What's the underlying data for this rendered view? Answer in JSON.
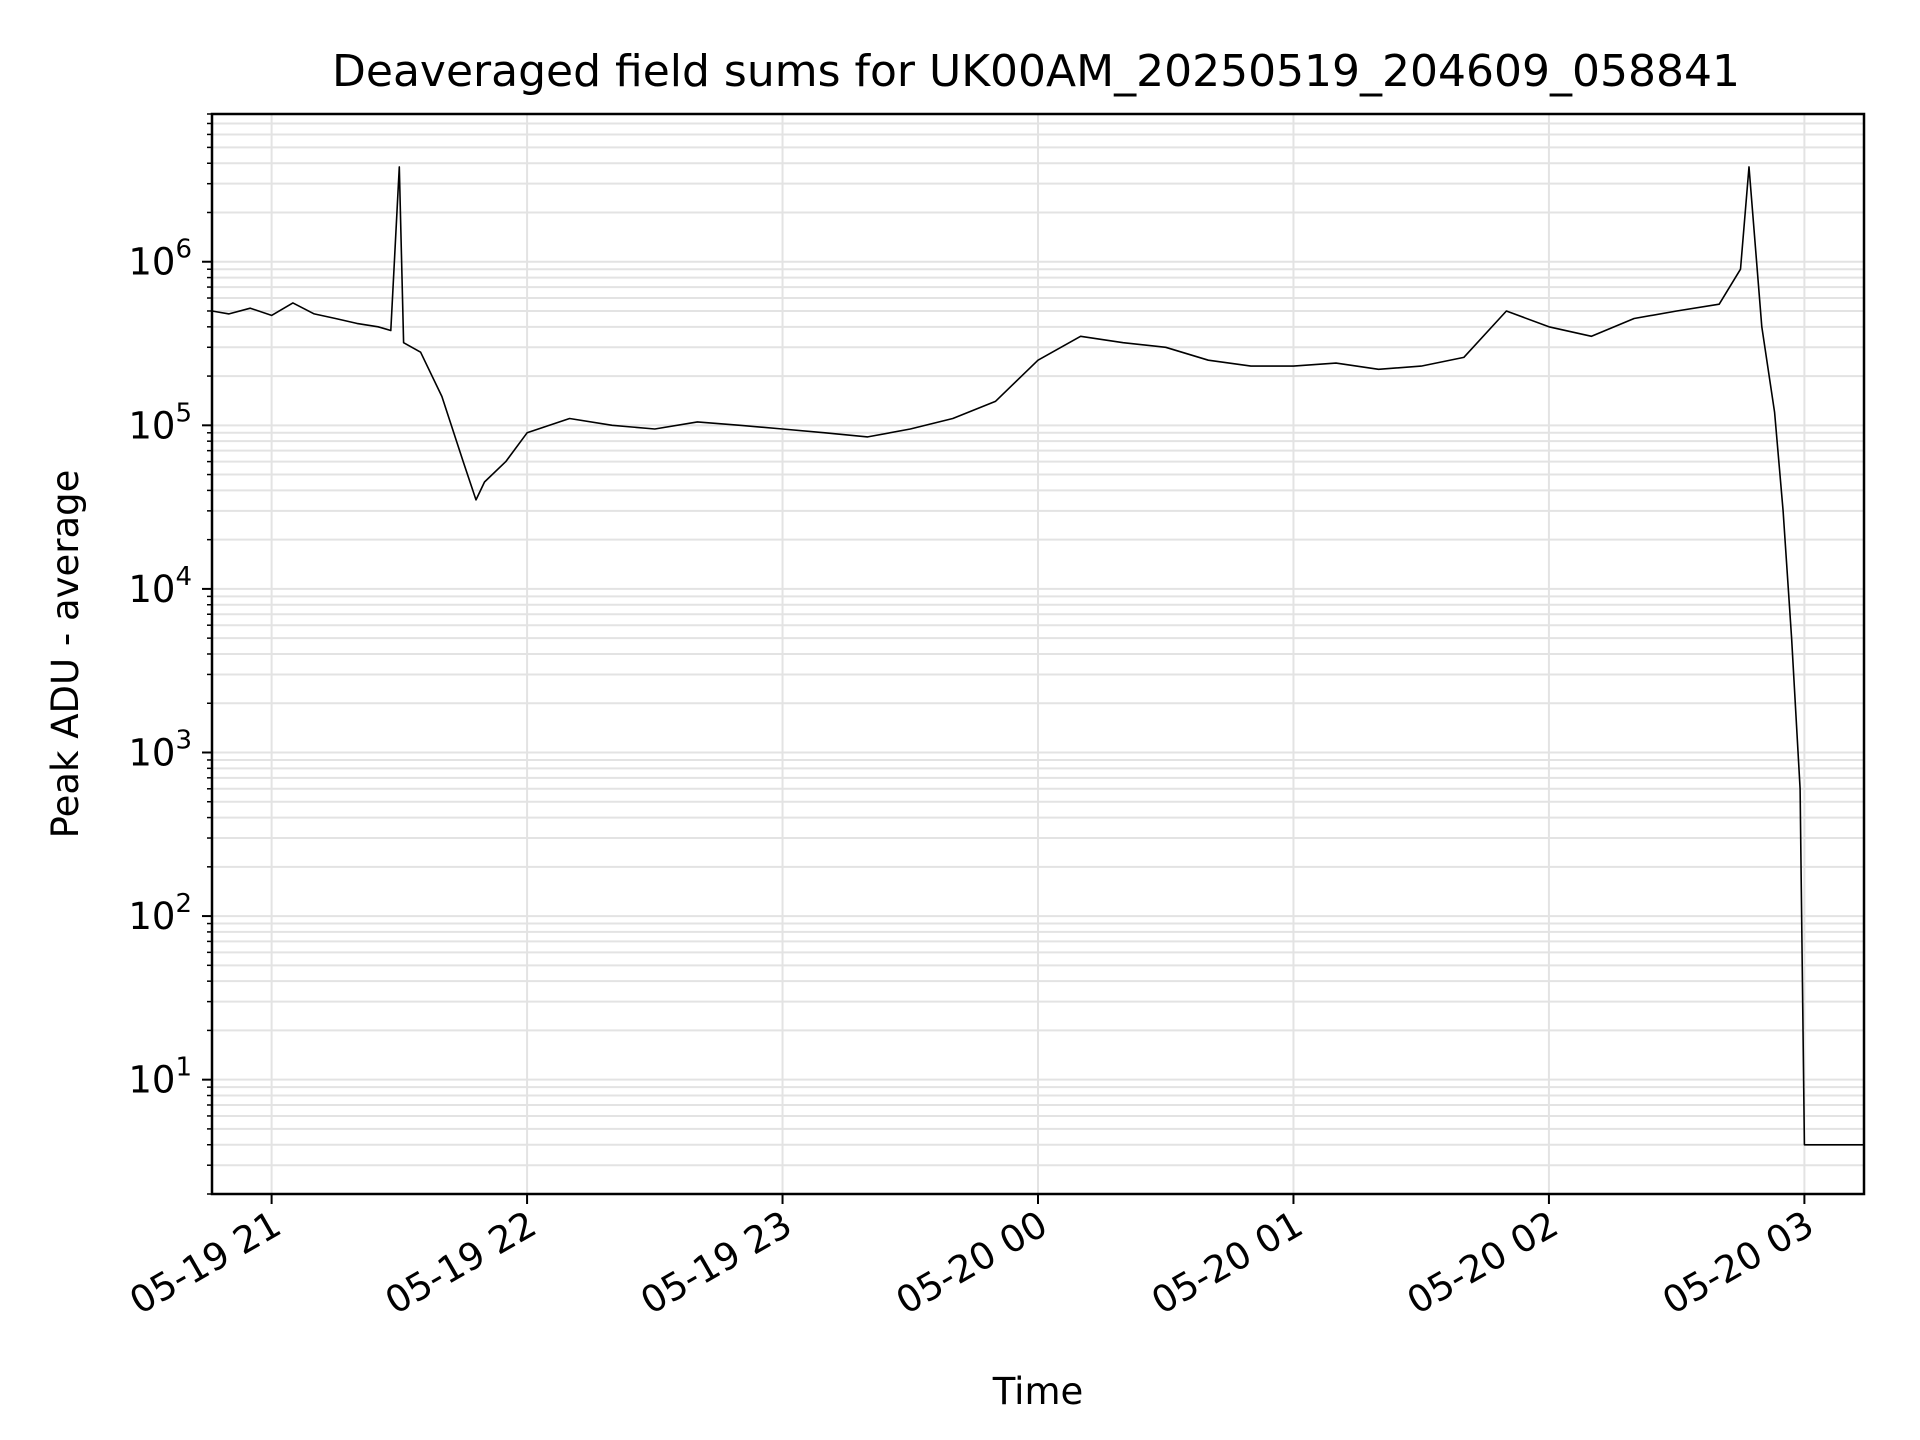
{
  "chart_data": {
    "type": "line",
    "title": "Deaveraged field sums for UK00AM_20250519_204609_058841",
    "xlabel": "Time",
    "ylabel": "Peak ADU - average",
    "y_scale": "log",
    "ylim": [
      2,
      8000000
    ],
    "xlim": [
      "2025-05-19 20:46",
      "2025-05-20 03:14"
    ],
    "grid": true,
    "line_color": "#000000",
    "grid_color": "#e3e3e3",
    "x_ticks": [
      {
        "value": "2025-05-19 21:00",
        "label": "05-19 21"
      },
      {
        "value": "2025-05-19 22:00",
        "label": "05-19 22"
      },
      {
        "value": "2025-05-19 23:00",
        "label": "05-19 23"
      },
      {
        "value": "2025-05-20 00:00",
        "label": "05-20 00"
      },
      {
        "value": "2025-05-20 01:00",
        "label": "05-20 01"
      },
      {
        "value": "2025-05-20 02:00",
        "label": "05-20 02"
      },
      {
        "value": "2025-05-20 03:00",
        "label": "05-20 03"
      }
    ],
    "y_ticks": [
      {
        "value": 10,
        "base": "10",
        "exp": "1"
      },
      {
        "value": 100,
        "base": "10",
        "exp": "2"
      },
      {
        "value": 1000,
        "base": "10",
        "exp": "3"
      },
      {
        "value": 10000,
        "base": "10",
        "exp": "4"
      },
      {
        "value": 100000,
        "base": "10",
        "exp": "5"
      },
      {
        "value": 1000000,
        "base": "10",
        "exp": "6"
      }
    ],
    "series": [
      {
        "points": [
          [
            "2025-05-19 20:46",
            500000
          ],
          [
            "2025-05-19 20:50",
            480000
          ],
          [
            "2025-05-19 20:55",
            520000
          ],
          [
            "2025-05-19 21:00",
            470000
          ],
          [
            "2025-05-19 21:05",
            560000
          ],
          [
            "2025-05-19 21:10",
            480000
          ],
          [
            "2025-05-19 21:15",
            450000
          ],
          [
            "2025-05-19 21:20",
            420000
          ],
          [
            "2025-05-19 21:25",
            400000
          ],
          [
            "2025-05-19 21:28",
            380000
          ],
          [
            "2025-05-19 21:30",
            3800000
          ],
          [
            "2025-05-19 21:31",
            320000
          ],
          [
            "2025-05-19 21:35",
            280000
          ],
          [
            "2025-05-19 21:40",
            150000
          ],
          [
            "2025-05-19 21:45",
            60000
          ],
          [
            "2025-05-19 21:48",
            35000
          ],
          [
            "2025-05-19 21:50",
            45000
          ],
          [
            "2025-05-19 21:55",
            60000
          ],
          [
            "2025-05-19 22:00",
            90000
          ],
          [
            "2025-05-19 22:10",
            110000
          ],
          [
            "2025-05-19 22:20",
            100000
          ],
          [
            "2025-05-19 22:30",
            95000
          ],
          [
            "2025-05-19 22:40",
            105000
          ],
          [
            "2025-05-19 22:50",
            100000
          ],
          [
            "2025-05-19 23:00",
            95000
          ],
          [
            "2025-05-19 23:10",
            90000
          ],
          [
            "2025-05-19 23:20",
            85000
          ],
          [
            "2025-05-19 23:30",
            95000
          ],
          [
            "2025-05-19 23:40",
            110000
          ],
          [
            "2025-05-19 23:50",
            140000
          ],
          [
            "2025-05-20 00:00",
            250000
          ],
          [
            "2025-05-20 00:10",
            350000
          ],
          [
            "2025-05-20 00:20",
            320000
          ],
          [
            "2025-05-20 00:30",
            300000
          ],
          [
            "2025-05-20 00:40",
            250000
          ],
          [
            "2025-05-20 00:50",
            230000
          ],
          [
            "2025-05-20 01:00",
            230000
          ],
          [
            "2025-05-20 01:10",
            240000
          ],
          [
            "2025-05-20 01:20",
            220000
          ],
          [
            "2025-05-20 01:30",
            230000
          ],
          [
            "2025-05-20 01:40",
            260000
          ],
          [
            "2025-05-20 01:50",
            500000
          ],
          [
            "2025-05-20 02:00",
            400000
          ],
          [
            "2025-05-20 02:10",
            350000
          ],
          [
            "2025-05-20 02:20",
            450000
          ],
          [
            "2025-05-20 02:30",
            500000
          ],
          [
            "2025-05-20 02:40",
            550000
          ],
          [
            "2025-05-20 02:45",
            900000
          ],
          [
            "2025-05-20 02:47",
            3800000
          ],
          [
            "2025-05-20 02:50",
            400000
          ],
          [
            "2025-05-20 02:53",
            120000
          ],
          [
            "2025-05-20 02:55",
            30000
          ],
          [
            "2025-05-20 02:57",
            5000
          ],
          [
            "2025-05-20 02:59",
            600
          ],
          [
            "2025-05-20 03:00",
            4
          ],
          [
            "2025-05-20 03:14",
            4
          ]
        ]
      }
    ]
  }
}
